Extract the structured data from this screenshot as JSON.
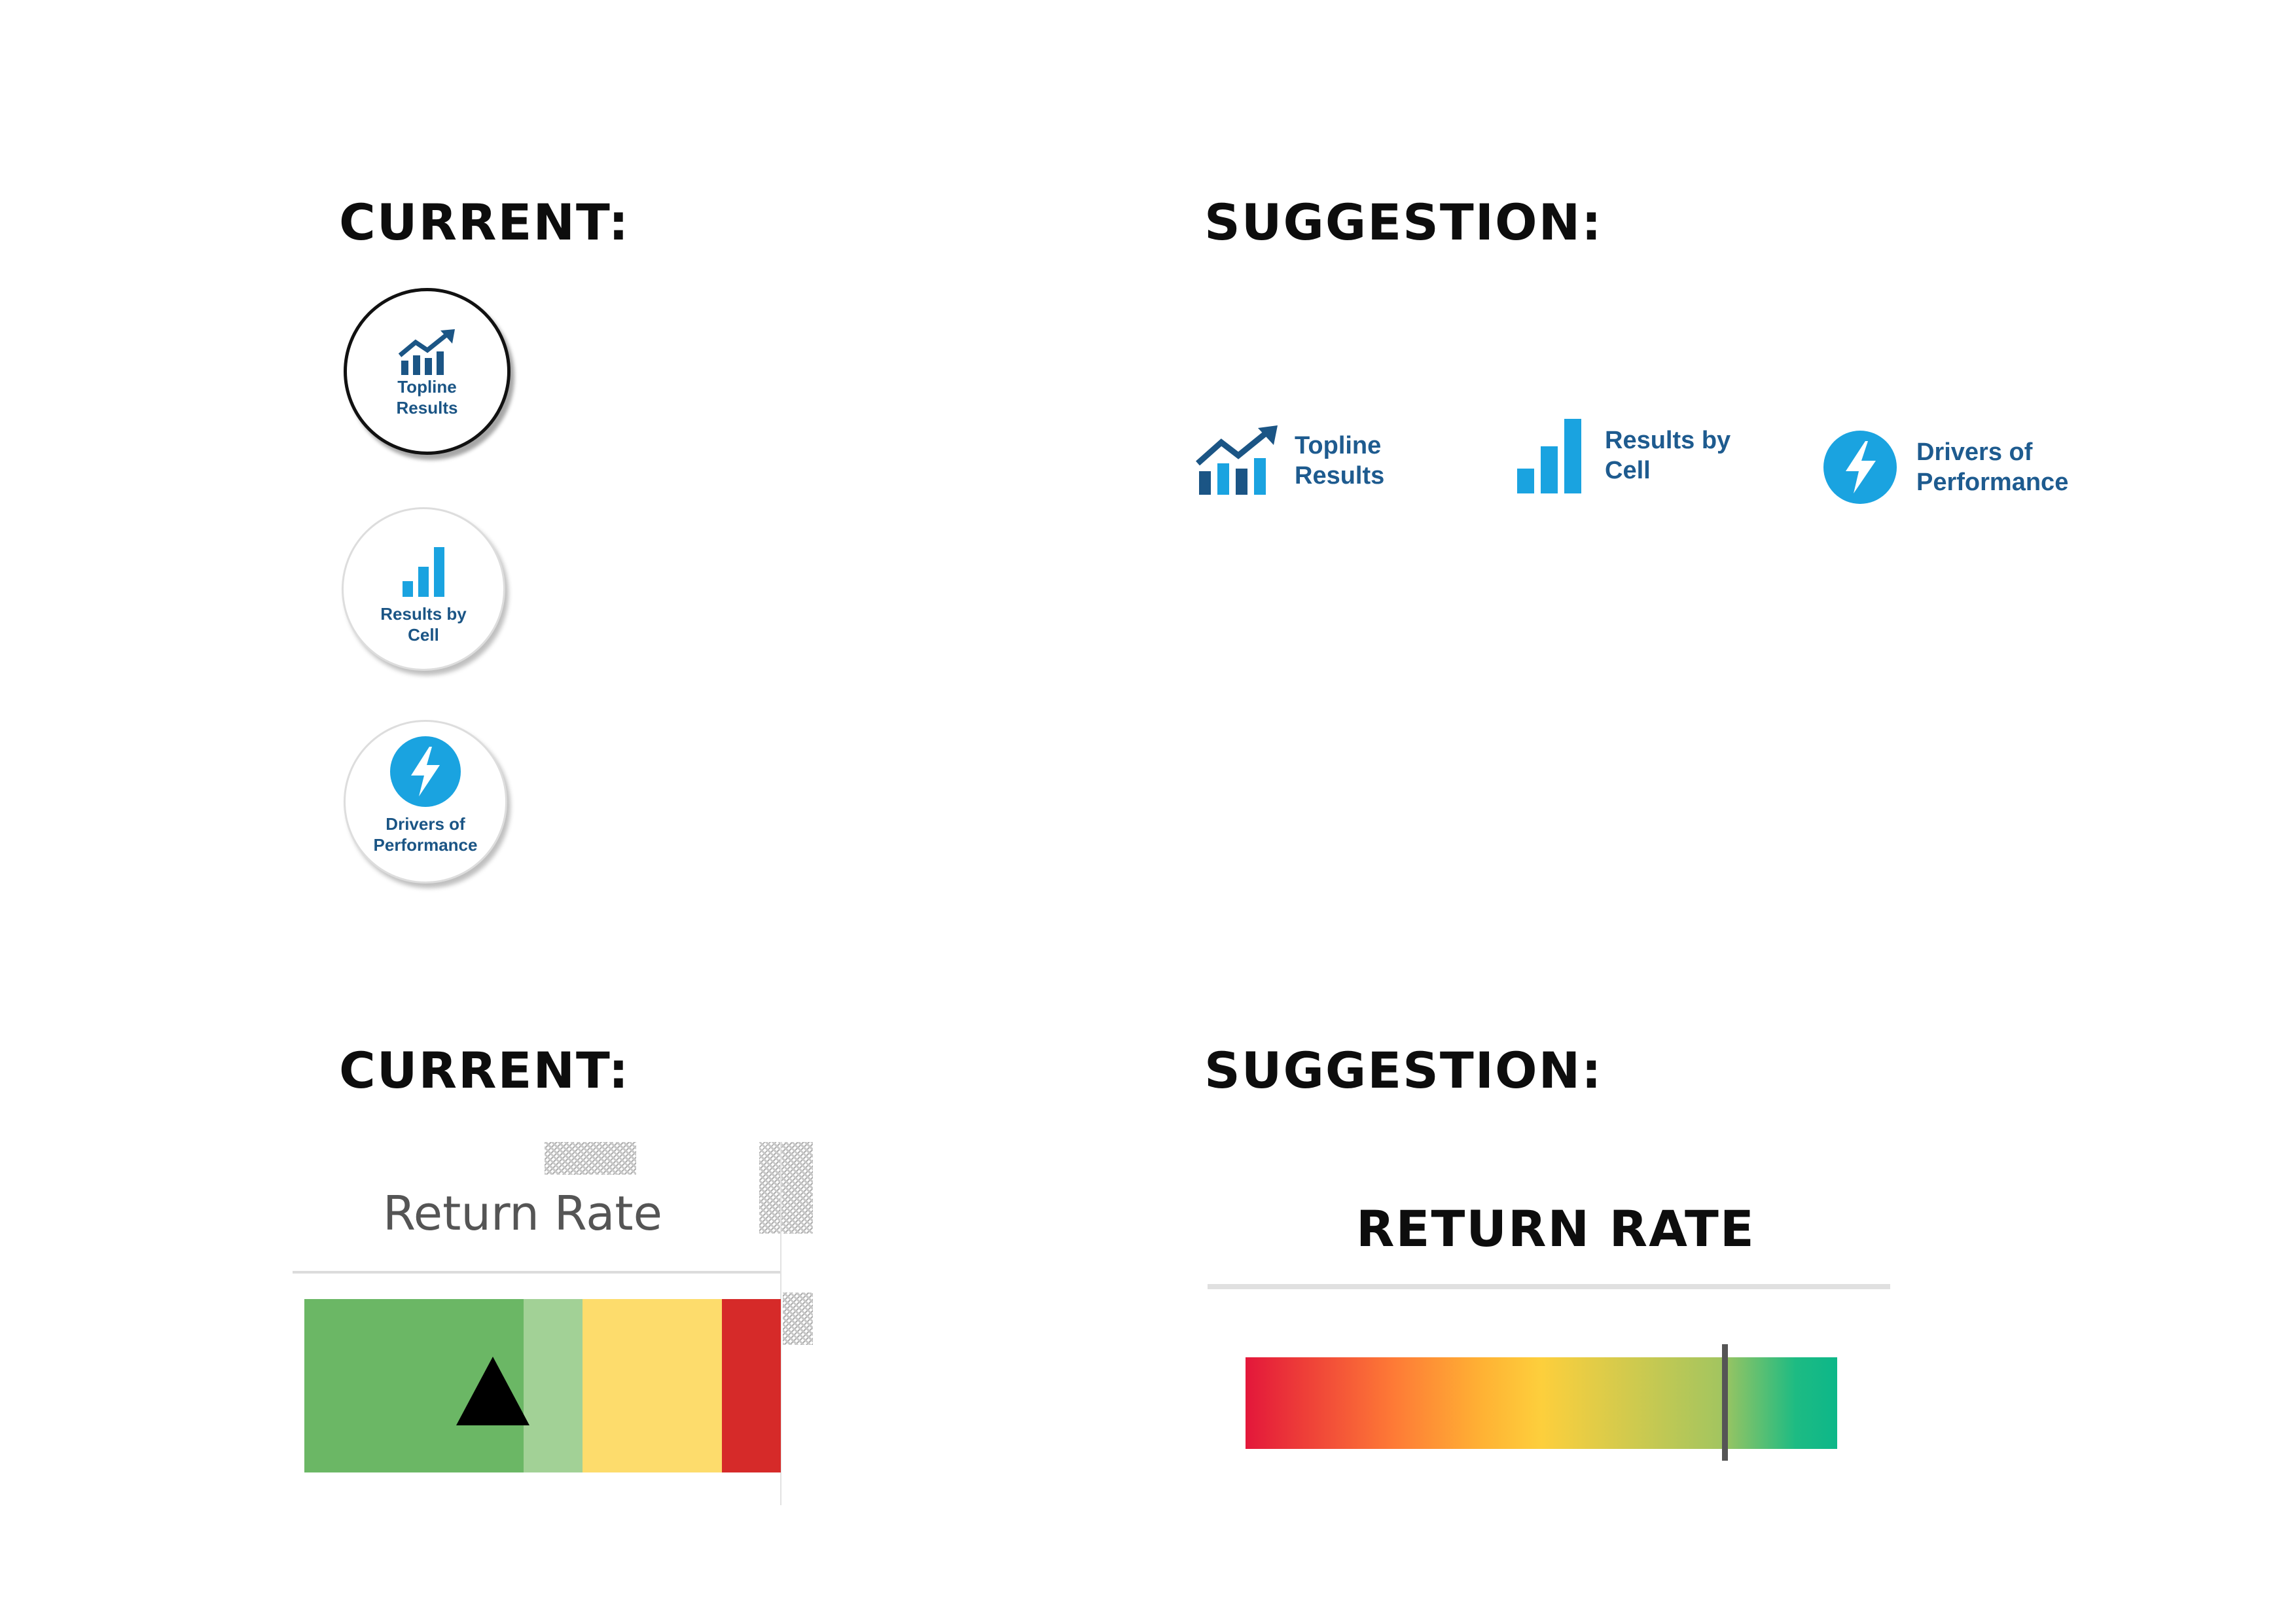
{
  "sections": {
    "top_current_heading": "CURRENT:",
    "top_suggestion_heading": "SUGGESTION:",
    "bottom_current_heading": "CURRENT:",
    "bottom_suggestion_heading": "SUGGESTION:"
  },
  "current_buttons": [
    {
      "label": "Topline\nResults",
      "icon": "trend-chart-icon"
    },
    {
      "label": "Results by\nCell",
      "icon": "bar-chart-icon"
    },
    {
      "label": "Drivers of\nPerformance",
      "icon": "lightning-icon"
    }
  ],
  "suggested_buttons": [
    {
      "label": "Topline\nResults",
      "icon": "trend-chart-icon"
    },
    {
      "label": "Results by\nCell",
      "icon": "bar-chart-icon"
    },
    {
      "label": "Drivers of\nPerformance",
      "icon": "lightning-icon"
    }
  ],
  "return_rate_current": {
    "title": "Return Rate",
    "segments_colors": [
      "#6bb765",
      "#a2d196",
      "#fddc6c",
      "#d62a29"
    ],
    "indicator": "triangle-up-icon"
  },
  "return_rate_suggestion": {
    "title": "RETURN RATE",
    "gradient_colors": [
      "#e3173a",
      "#fe7a36",
      "#ffb234",
      "#fdcf3c",
      "#a4c55f",
      "#1dbb83",
      "#0db789"
    ],
    "marker_level": 0.81
  },
  "colors": {
    "icon_dark": "#1b5585",
    "icon_light": "#1aa3e0",
    "heading": "#0d0d0d"
  }
}
